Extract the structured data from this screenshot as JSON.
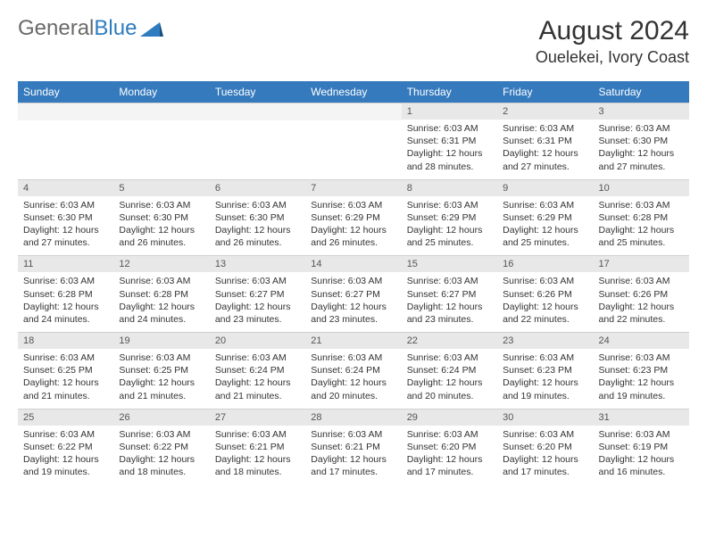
{
  "logo": {
    "text1": "General",
    "text2": "Blue"
  },
  "title": "August 2024",
  "location": "Ouelekei, Ivory Coast",
  "colors": {
    "header_bg": "#357abd",
    "header_text": "#ffffff",
    "daynum_bg": "#e8e8e8",
    "body_text": "#333333",
    "logo_gray": "#6a6a6a",
    "logo_blue": "#2e7cc0"
  },
  "day_names": [
    "Sunday",
    "Monday",
    "Tuesday",
    "Wednesday",
    "Thursday",
    "Friday",
    "Saturday"
  ],
  "weeks": [
    [
      {
        "empty": true
      },
      {
        "empty": true
      },
      {
        "empty": true
      },
      {
        "empty": true
      },
      {
        "day": "1",
        "sunrise": "Sunrise: 6:03 AM",
        "sunset": "Sunset: 6:31 PM",
        "daylight1": "Daylight: 12 hours",
        "daylight2": "and 28 minutes."
      },
      {
        "day": "2",
        "sunrise": "Sunrise: 6:03 AM",
        "sunset": "Sunset: 6:31 PM",
        "daylight1": "Daylight: 12 hours",
        "daylight2": "and 27 minutes."
      },
      {
        "day": "3",
        "sunrise": "Sunrise: 6:03 AM",
        "sunset": "Sunset: 6:30 PM",
        "daylight1": "Daylight: 12 hours",
        "daylight2": "and 27 minutes."
      }
    ],
    [
      {
        "day": "4",
        "sunrise": "Sunrise: 6:03 AM",
        "sunset": "Sunset: 6:30 PM",
        "daylight1": "Daylight: 12 hours",
        "daylight2": "and 27 minutes."
      },
      {
        "day": "5",
        "sunrise": "Sunrise: 6:03 AM",
        "sunset": "Sunset: 6:30 PM",
        "daylight1": "Daylight: 12 hours",
        "daylight2": "and 26 minutes."
      },
      {
        "day": "6",
        "sunrise": "Sunrise: 6:03 AM",
        "sunset": "Sunset: 6:30 PM",
        "daylight1": "Daylight: 12 hours",
        "daylight2": "and 26 minutes."
      },
      {
        "day": "7",
        "sunrise": "Sunrise: 6:03 AM",
        "sunset": "Sunset: 6:29 PM",
        "daylight1": "Daylight: 12 hours",
        "daylight2": "and 26 minutes."
      },
      {
        "day": "8",
        "sunrise": "Sunrise: 6:03 AM",
        "sunset": "Sunset: 6:29 PM",
        "daylight1": "Daylight: 12 hours",
        "daylight2": "and 25 minutes."
      },
      {
        "day": "9",
        "sunrise": "Sunrise: 6:03 AM",
        "sunset": "Sunset: 6:29 PM",
        "daylight1": "Daylight: 12 hours",
        "daylight2": "and 25 minutes."
      },
      {
        "day": "10",
        "sunrise": "Sunrise: 6:03 AM",
        "sunset": "Sunset: 6:28 PM",
        "daylight1": "Daylight: 12 hours",
        "daylight2": "and 25 minutes."
      }
    ],
    [
      {
        "day": "11",
        "sunrise": "Sunrise: 6:03 AM",
        "sunset": "Sunset: 6:28 PM",
        "daylight1": "Daylight: 12 hours",
        "daylight2": "and 24 minutes."
      },
      {
        "day": "12",
        "sunrise": "Sunrise: 6:03 AM",
        "sunset": "Sunset: 6:28 PM",
        "daylight1": "Daylight: 12 hours",
        "daylight2": "and 24 minutes."
      },
      {
        "day": "13",
        "sunrise": "Sunrise: 6:03 AM",
        "sunset": "Sunset: 6:27 PM",
        "daylight1": "Daylight: 12 hours",
        "daylight2": "and 23 minutes."
      },
      {
        "day": "14",
        "sunrise": "Sunrise: 6:03 AM",
        "sunset": "Sunset: 6:27 PM",
        "daylight1": "Daylight: 12 hours",
        "daylight2": "and 23 minutes."
      },
      {
        "day": "15",
        "sunrise": "Sunrise: 6:03 AM",
        "sunset": "Sunset: 6:27 PM",
        "daylight1": "Daylight: 12 hours",
        "daylight2": "and 23 minutes."
      },
      {
        "day": "16",
        "sunrise": "Sunrise: 6:03 AM",
        "sunset": "Sunset: 6:26 PM",
        "daylight1": "Daylight: 12 hours",
        "daylight2": "and 22 minutes."
      },
      {
        "day": "17",
        "sunrise": "Sunrise: 6:03 AM",
        "sunset": "Sunset: 6:26 PM",
        "daylight1": "Daylight: 12 hours",
        "daylight2": "and 22 minutes."
      }
    ],
    [
      {
        "day": "18",
        "sunrise": "Sunrise: 6:03 AM",
        "sunset": "Sunset: 6:25 PM",
        "daylight1": "Daylight: 12 hours",
        "daylight2": "and 21 minutes."
      },
      {
        "day": "19",
        "sunrise": "Sunrise: 6:03 AM",
        "sunset": "Sunset: 6:25 PM",
        "daylight1": "Daylight: 12 hours",
        "daylight2": "and 21 minutes."
      },
      {
        "day": "20",
        "sunrise": "Sunrise: 6:03 AM",
        "sunset": "Sunset: 6:24 PM",
        "daylight1": "Daylight: 12 hours",
        "daylight2": "and 21 minutes."
      },
      {
        "day": "21",
        "sunrise": "Sunrise: 6:03 AM",
        "sunset": "Sunset: 6:24 PM",
        "daylight1": "Daylight: 12 hours",
        "daylight2": "and 20 minutes."
      },
      {
        "day": "22",
        "sunrise": "Sunrise: 6:03 AM",
        "sunset": "Sunset: 6:24 PM",
        "daylight1": "Daylight: 12 hours",
        "daylight2": "and 20 minutes."
      },
      {
        "day": "23",
        "sunrise": "Sunrise: 6:03 AM",
        "sunset": "Sunset: 6:23 PM",
        "daylight1": "Daylight: 12 hours",
        "daylight2": "and 19 minutes."
      },
      {
        "day": "24",
        "sunrise": "Sunrise: 6:03 AM",
        "sunset": "Sunset: 6:23 PM",
        "daylight1": "Daylight: 12 hours",
        "daylight2": "and 19 minutes."
      }
    ],
    [
      {
        "day": "25",
        "sunrise": "Sunrise: 6:03 AM",
        "sunset": "Sunset: 6:22 PM",
        "daylight1": "Daylight: 12 hours",
        "daylight2": "and 19 minutes."
      },
      {
        "day": "26",
        "sunrise": "Sunrise: 6:03 AM",
        "sunset": "Sunset: 6:22 PM",
        "daylight1": "Daylight: 12 hours",
        "daylight2": "and 18 minutes."
      },
      {
        "day": "27",
        "sunrise": "Sunrise: 6:03 AM",
        "sunset": "Sunset: 6:21 PM",
        "daylight1": "Daylight: 12 hours",
        "daylight2": "and 18 minutes."
      },
      {
        "day": "28",
        "sunrise": "Sunrise: 6:03 AM",
        "sunset": "Sunset: 6:21 PM",
        "daylight1": "Daylight: 12 hours",
        "daylight2": "and 17 minutes."
      },
      {
        "day": "29",
        "sunrise": "Sunrise: 6:03 AM",
        "sunset": "Sunset: 6:20 PM",
        "daylight1": "Daylight: 12 hours",
        "daylight2": "and 17 minutes."
      },
      {
        "day": "30",
        "sunrise": "Sunrise: 6:03 AM",
        "sunset": "Sunset: 6:20 PM",
        "daylight1": "Daylight: 12 hours",
        "daylight2": "and 17 minutes."
      },
      {
        "day": "31",
        "sunrise": "Sunrise: 6:03 AM",
        "sunset": "Sunset: 6:19 PM",
        "daylight1": "Daylight: 12 hours",
        "daylight2": "and 16 minutes."
      }
    ]
  ]
}
